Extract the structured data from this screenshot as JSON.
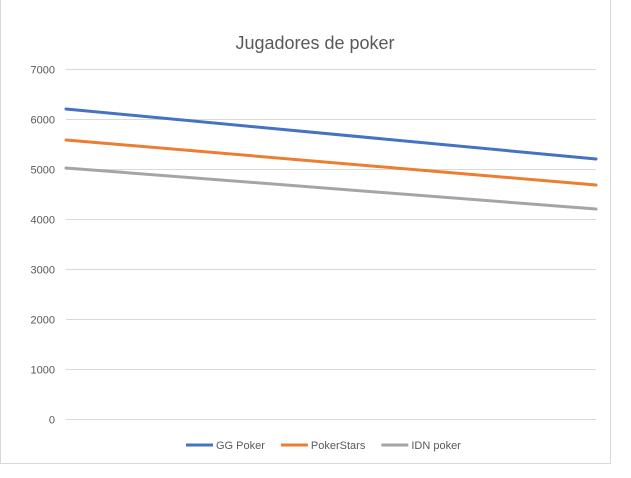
{
  "chart_data": {
    "type": "line",
    "title": "Jugadores de poker",
    "xlabel": "",
    "ylabel": "",
    "x": [
      0,
      1
    ],
    "ylim": [
      0,
      7000
    ],
    "yticks": [
      "0",
      "1000",
      "2000",
      "3000",
      "4000",
      "5000",
      "6000",
      "7000"
    ],
    "grid": true,
    "legend_position": "bottom",
    "series": [
      {
        "name": "GG Poker",
        "values": [
          6200,
          5200
        ],
        "color": "#4472c4"
      },
      {
        "name": "PokerStars",
        "values": [
          5580,
          4680
        ],
        "color": "#ed7d31"
      },
      {
        "name": "IDN poker",
        "values": [
          5020,
          4200
        ],
        "color": "#a5a5a5"
      }
    ]
  }
}
